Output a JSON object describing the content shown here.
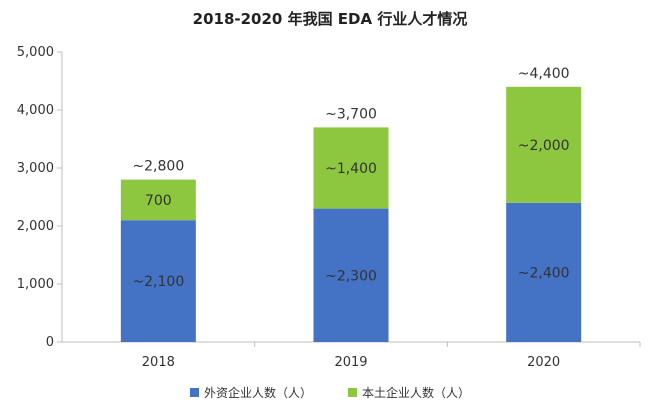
{
  "chart_data": {
    "type": "bar",
    "stacked": true,
    "title": "2018-2020 年我国 EDA 行业人才情况",
    "xlabel": "",
    "ylabel": "",
    "categories": [
      "2018",
      "2019",
      "2020"
    ],
    "ylim": [
      0,
      5000
    ],
    "yticks": [
      0,
      1000,
      2000,
      3000,
      4000,
      5000
    ],
    "ytick_labels": [
      "0",
      "1,000",
      "2,000",
      "3,000",
      "4,000",
      "5,000"
    ],
    "grid": false,
    "legend_position": "bottom",
    "series": [
      {
        "name": "外资企业人数（人）",
        "color": "#4472C4",
        "values": [
          2100,
          2300,
          2400
        ],
        "labels": [
          "~2,100",
          "~2,300",
          "~2,400"
        ]
      },
      {
        "name": "本土企业人数（人）",
        "color": "#8DC63F",
        "values": [
          700,
          1400,
          2000
        ],
        "labels": [
          "700",
          "~1,400",
          "~2,000"
        ]
      }
    ],
    "totals": [
      2800,
      3700,
      4400
    ],
    "total_labels": [
      "~2,800",
      "~3,700",
      "~4,400"
    ]
  }
}
